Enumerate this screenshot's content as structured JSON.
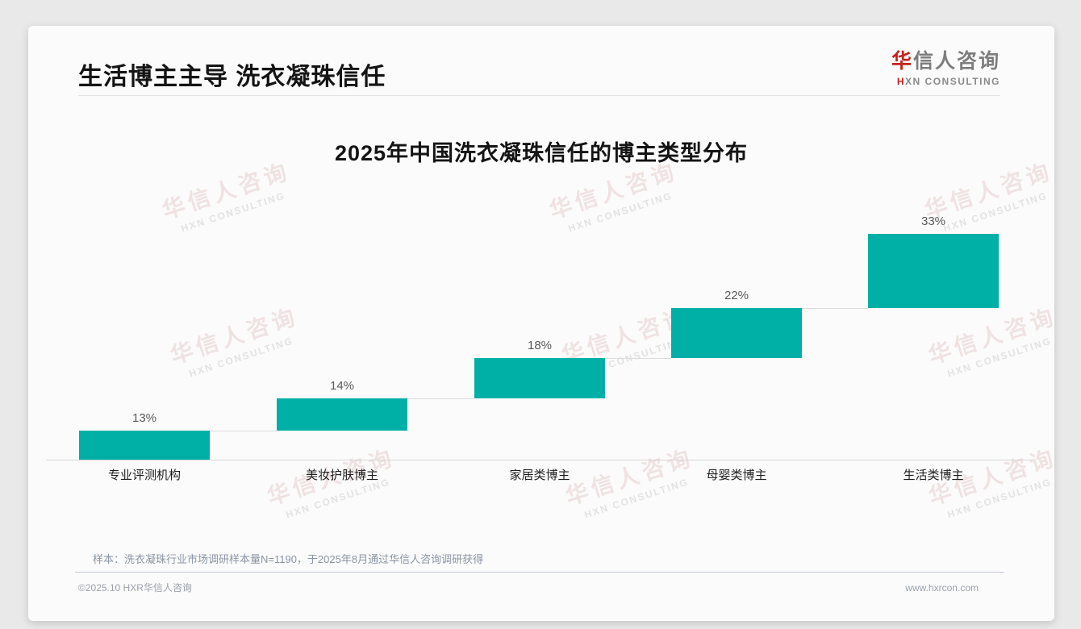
{
  "header": {
    "title": "生活博主主导 洗衣凝珠信任"
  },
  "logo": {
    "cn_first": "华",
    "cn_rest": "信人咨询",
    "en_first": "H",
    "en_rest": "XN CONSULTING"
  },
  "chart_data": {
    "type": "bar",
    "subtype": "waterfall",
    "title": "2025年中国洗衣凝珠信任的博主类型分布",
    "categories": [
      "专业评测机构",
      "美妆护肤博主",
      "家居类博主",
      "母婴类博主",
      "生活类博主"
    ],
    "values": [
      13,
      14,
      18,
      22,
      33
    ],
    "labels": [
      "13%",
      "14%",
      "18%",
      "22%",
      "33%"
    ],
    "unit": "%",
    "ylim": [
      0,
      100
    ],
    "cumulative": true,
    "grid": false,
    "legend": false,
    "bar_color": "#00AFA5",
    "value_label_color": "#595959",
    "connector_color": "#dcdcdc"
  },
  "footnote": "样本：洗衣凝珠行业市场调研样本量N=1190，于2025年8月通过华信人咨询调研获得",
  "footer": {
    "left": "©2025.10 HXR华信人咨询",
    "right": "www.hxrcon.com"
  },
  "watermark": {
    "line1": "华信人咨询",
    "line2": "HXN CONSULTING"
  },
  "colors": {
    "accent_red": "#c5231f",
    "bar_teal": "#00AFA5",
    "card_bg": "#fbfbfb",
    "page_bg": "#e9e9e9"
  }
}
